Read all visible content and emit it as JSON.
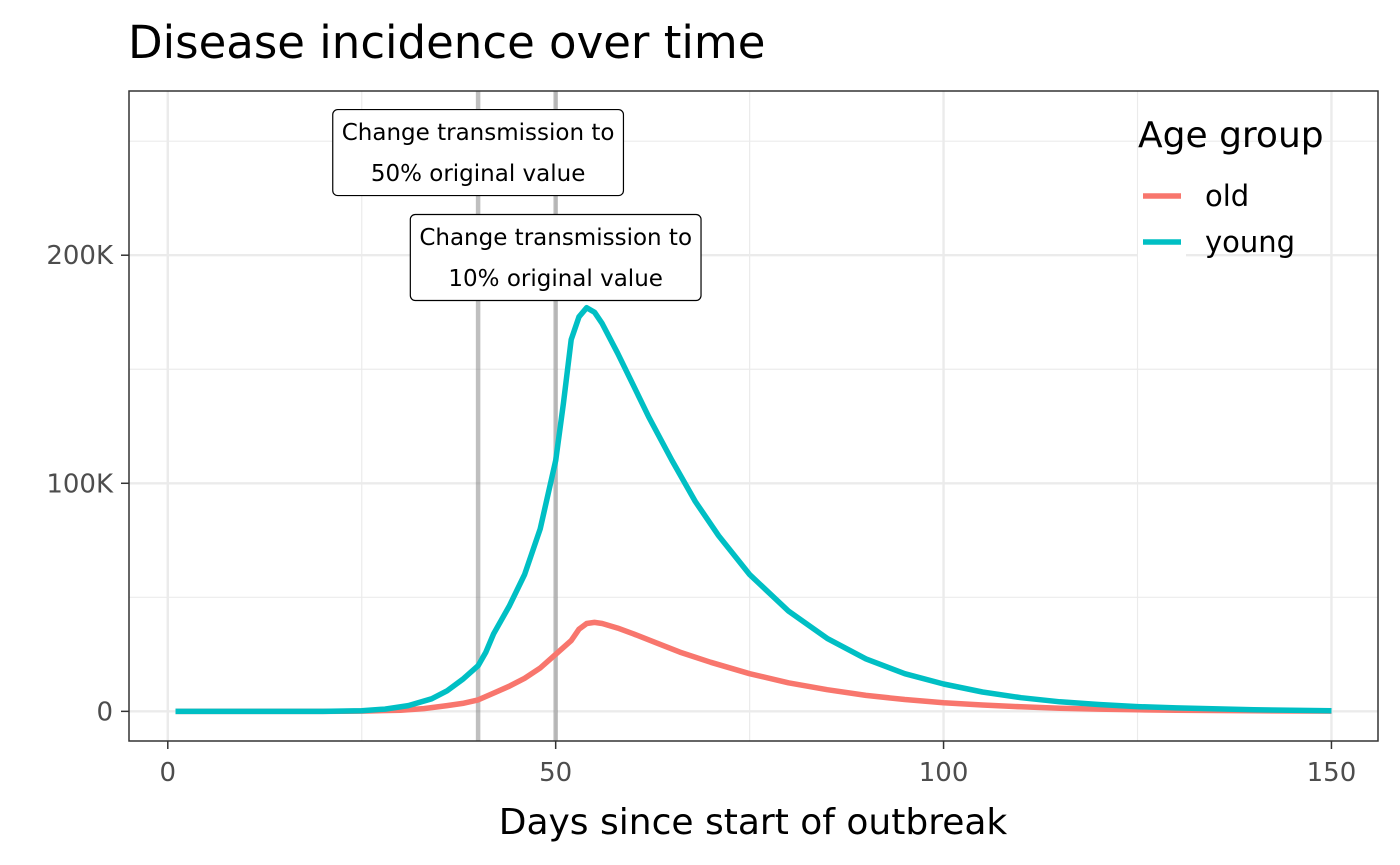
{
  "chart_data": {
    "type": "line",
    "title": "Disease incidence over time",
    "xlabel": "Days since start of outbreak",
    "ylabel": "",
    "xlim": [
      -5,
      156
    ],
    "ylim": [
      -13000,
      272000
    ],
    "x_ticks": [
      0,
      50,
      100,
      150
    ],
    "x_tick_labels": [
      "0",
      "50",
      "100",
      "150"
    ],
    "x_minor_ticks": [
      25,
      75,
      125
    ],
    "y_ticks": [
      0,
      100000,
      200000
    ],
    "y_tick_labels": [
      "0",
      "100K",
      "200K"
    ],
    "y_minor_ticks": [
      50000,
      150000,
      250000
    ],
    "grid": true,
    "legend": {
      "title": "Age group",
      "position": "top-right"
    },
    "vlines": [
      {
        "x": 40,
        "color": "#808080"
      },
      {
        "x": 50,
        "color": "#808080"
      }
    ],
    "annotations": [
      {
        "lines": [
          "Change transmission to",
          "50% original value"
        ],
        "x": 40,
        "y": 245000
      },
      {
        "lines": [
          "Change transmission to",
          "10% original value"
        ],
        "x": 50,
        "y": 199000
      }
    ],
    "series": [
      {
        "name": "old",
        "color": "#F8766D",
        "points": [
          [
            1,
            0
          ],
          [
            20,
            0
          ],
          [
            25,
            100
          ],
          [
            30,
            500
          ],
          [
            33,
            1200
          ],
          [
            36,
            2500
          ],
          [
            38,
            3500
          ],
          [
            40,
            5000
          ],
          [
            42,
            8000
          ],
          [
            44,
            11000
          ],
          [
            46,
            14500
          ],
          [
            48,
            19000
          ],
          [
            50,
            25000
          ],
          [
            52,
            31000
          ],
          [
            53,
            36000
          ],
          [
            54,
            38500
          ],
          [
            55,
            39000
          ],
          [
            56,
            38500
          ],
          [
            58,
            36500
          ],
          [
            60,
            34000
          ],
          [
            63,
            30000
          ],
          [
            66,
            26000
          ],
          [
            70,
            21500
          ],
          [
            75,
            16500
          ],
          [
            80,
            12500
          ],
          [
            85,
            9500
          ],
          [
            90,
            7000
          ],
          [
            95,
            5200
          ],
          [
            100,
            3800
          ],
          [
            105,
            2800
          ],
          [
            110,
            2000
          ],
          [
            115,
            1400
          ],
          [
            120,
            1000
          ],
          [
            125,
            700
          ],
          [
            130,
            500
          ],
          [
            140,
            250
          ],
          [
            150,
            100
          ]
        ]
      },
      {
        "name": "young",
        "color": "#00BFC4",
        "points": [
          [
            1,
            0
          ],
          [
            20,
            0
          ],
          [
            25,
            300
          ],
          [
            28,
            1000
          ],
          [
            31,
            2500
          ],
          [
            34,
            5500
          ],
          [
            36,
            9000
          ],
          [
            38,
            14000
          ],
          [
            40,
            20000
          ],
          [
            41,
            26000
          ],
          [
            42,
            34000
          ],
          [
            44,
            46000
          ],
          [
            46,
            60000
          ],
          [
            48,
            80000
          ],
          [
            50,
            110000
          ],
          [
            51,
            135000
          ],
          [
            52,
            163000
          ],
          [
            53,
            173000
          ],
          [
            54,
            177000
          ],
          [
            55,
            175000
          ],
          [
            56,
            170000
          ],
          [
            58,
            157000
          ],
          [
            60,
            143000
          ],
          [
            62,
            129000
          ],
          [
            65,
            110000
          ],
          [
            68,
            92000
          ],
          [
            71,
            77000
          ],
          [
            75,
            60000
          ],
          [
            80,
            44000
          ],
          [
            85,
            32000
          ],
          [
            90,
            23000
          ],
          [
            95,
            16500
          ],
          [
            100,
            12000
          ],
          [
            105,
            8500
          ],
          [
            110,
            6000
          ],
          [
            115,
            4200
          ],
          [
            120,
            3000
          ],
          [
            125,
            2100
          ],
          [
            130,
            1500
          ],
          [
            140,
            700
          ],
          [
            150,
            300
          ]
        ]
      }
    ]
  }
}
